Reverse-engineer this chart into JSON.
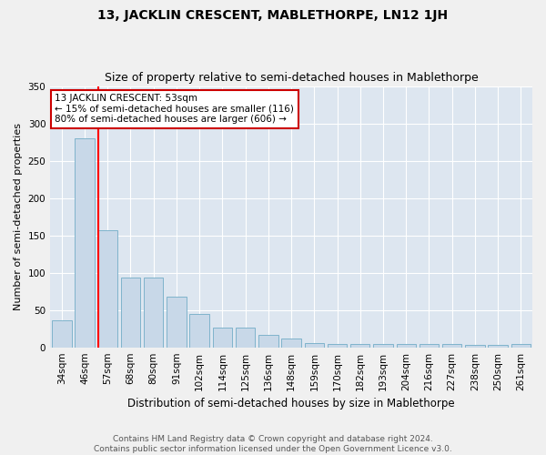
{
  "title": "13, JACKLIN CRESCENT, MABLETHORPE, LN12 1JH",
  "subtitle": "Size of property relative to semi-detached houses in Mablethorpe",
  "xlabel": "Distribution of semi-detached houses by size in Mablethorpe",
  "ylabel": "Number of semi-detached properties",
  "categories": [
    "34sqm",
    "46sqm",
    "57sqm",
    "68sqm",
    "80sqm",
    "91sqm",
    "102sqm",
    "114sqm",
    "125sqm",
    "136sqm",
    "148sqm",
    "159sqm",
    "170sqm",
    "182sqm",
    "193sqm",
    "204sqm",
    "216sqm",
    "227sqm",
    "238sqm",
    "250sqm",
    "261sqm"
  ],
  "values": [
    36,
    280,
    157,
    93,
    93,
    68,
    45,
    27,
    27,
    17,
    12,
    6,
    5,
    5,
    5,
    5,
    4,
    4,
    3,
    3,
    4
  ],
  "bar_color": "#c8d8e8",
  "bar_edge_color": "#7fb3cc",
  "annotation_text": "13 JACKLIN CRESCENT: 53sqm\n← 15% of semi-detached houses are smaller (116)\n80% of semi-detached houses are larger (606) →",
  "annotation_box_color": "#ffffff",
  "annotation_box_edge": "#cc0000",
  "background_color": "#dde6f0",
  "grid_color": "#ffffff",
  "fig_background": "#f0f0f0",
  "ylim": [
    0,
    350
  ],
  "yticks": [
    0,
    50,
    100,
    150,
    200,
    250,
    300,
    350
  ],
  "footer": "Contains HM Land Registry data © Crown copyright and database right 2024.\nContains public sector information licensed under the Open Government Licence v3.0.",
  "title_fontsize": 10,
  "subtitle_fontsize": 9,
  "xlabel_fontsize": 8.5,
  "ylabel_fontsize": 8,
  "tick_fontsize": 7.5,
  "footer_fontsize": 6.5,
  "red_line_x": 1.575
}
